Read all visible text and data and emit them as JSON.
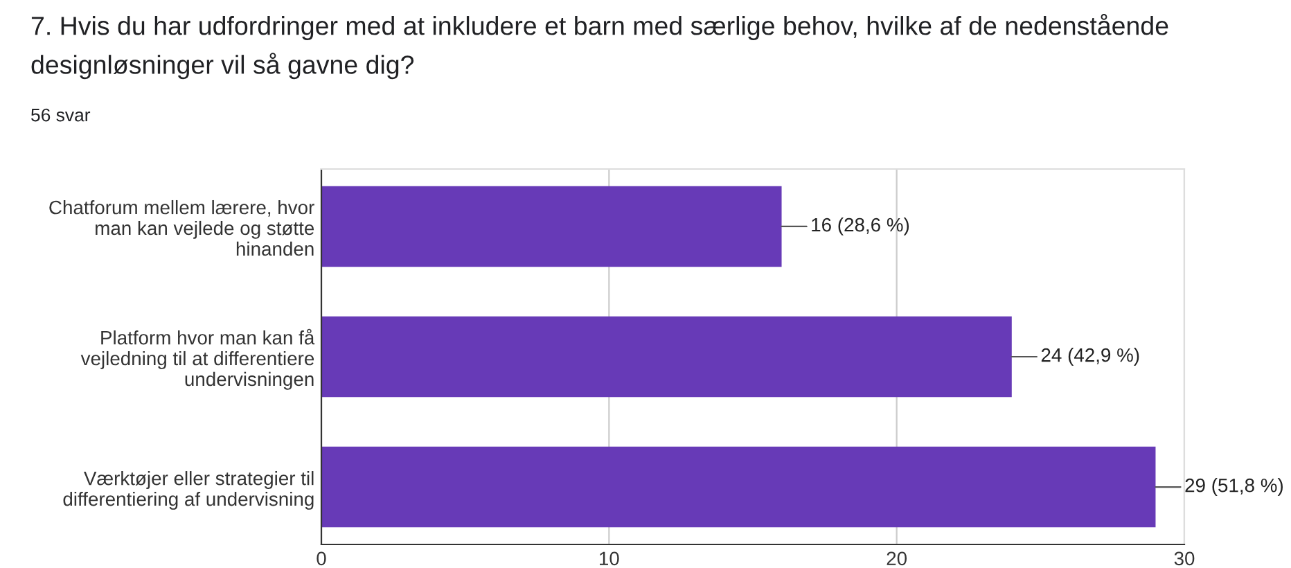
{
  "chart_data": {
    "type": "bar",
    "orientation": "horizontal",
    "title": "7. Hvis du har udfordringer med at inkludere et barn med særlige behov, hvilke af de nedenstående designløsninger vil så gavne dig?",
    "subtitle": "56 svar",
    "categories": [
      "Chatforum mellem lærere, hvor\nman kan vejlede og støtte\nhinanden",
      "Platform hvor man kan få\nvejledning til at differentiere\nundervisningen",
      "Værktøjer eller strategier til\ndifferentiering af undervisning"
    ],
    "values": [
      16,
      24,
      29
    ],
    "color": "#673ab7",
    "value_labels": [
      "16 (28,6 %)",
      "24 (42,9 %)",
      "29 (51,8 %)"
    ],
    "xlim": [
      0,
      30
    ],
    "xticks": [
      0,
      10,
      20,
      30
    ],
    "grid": "x"
  }
}
